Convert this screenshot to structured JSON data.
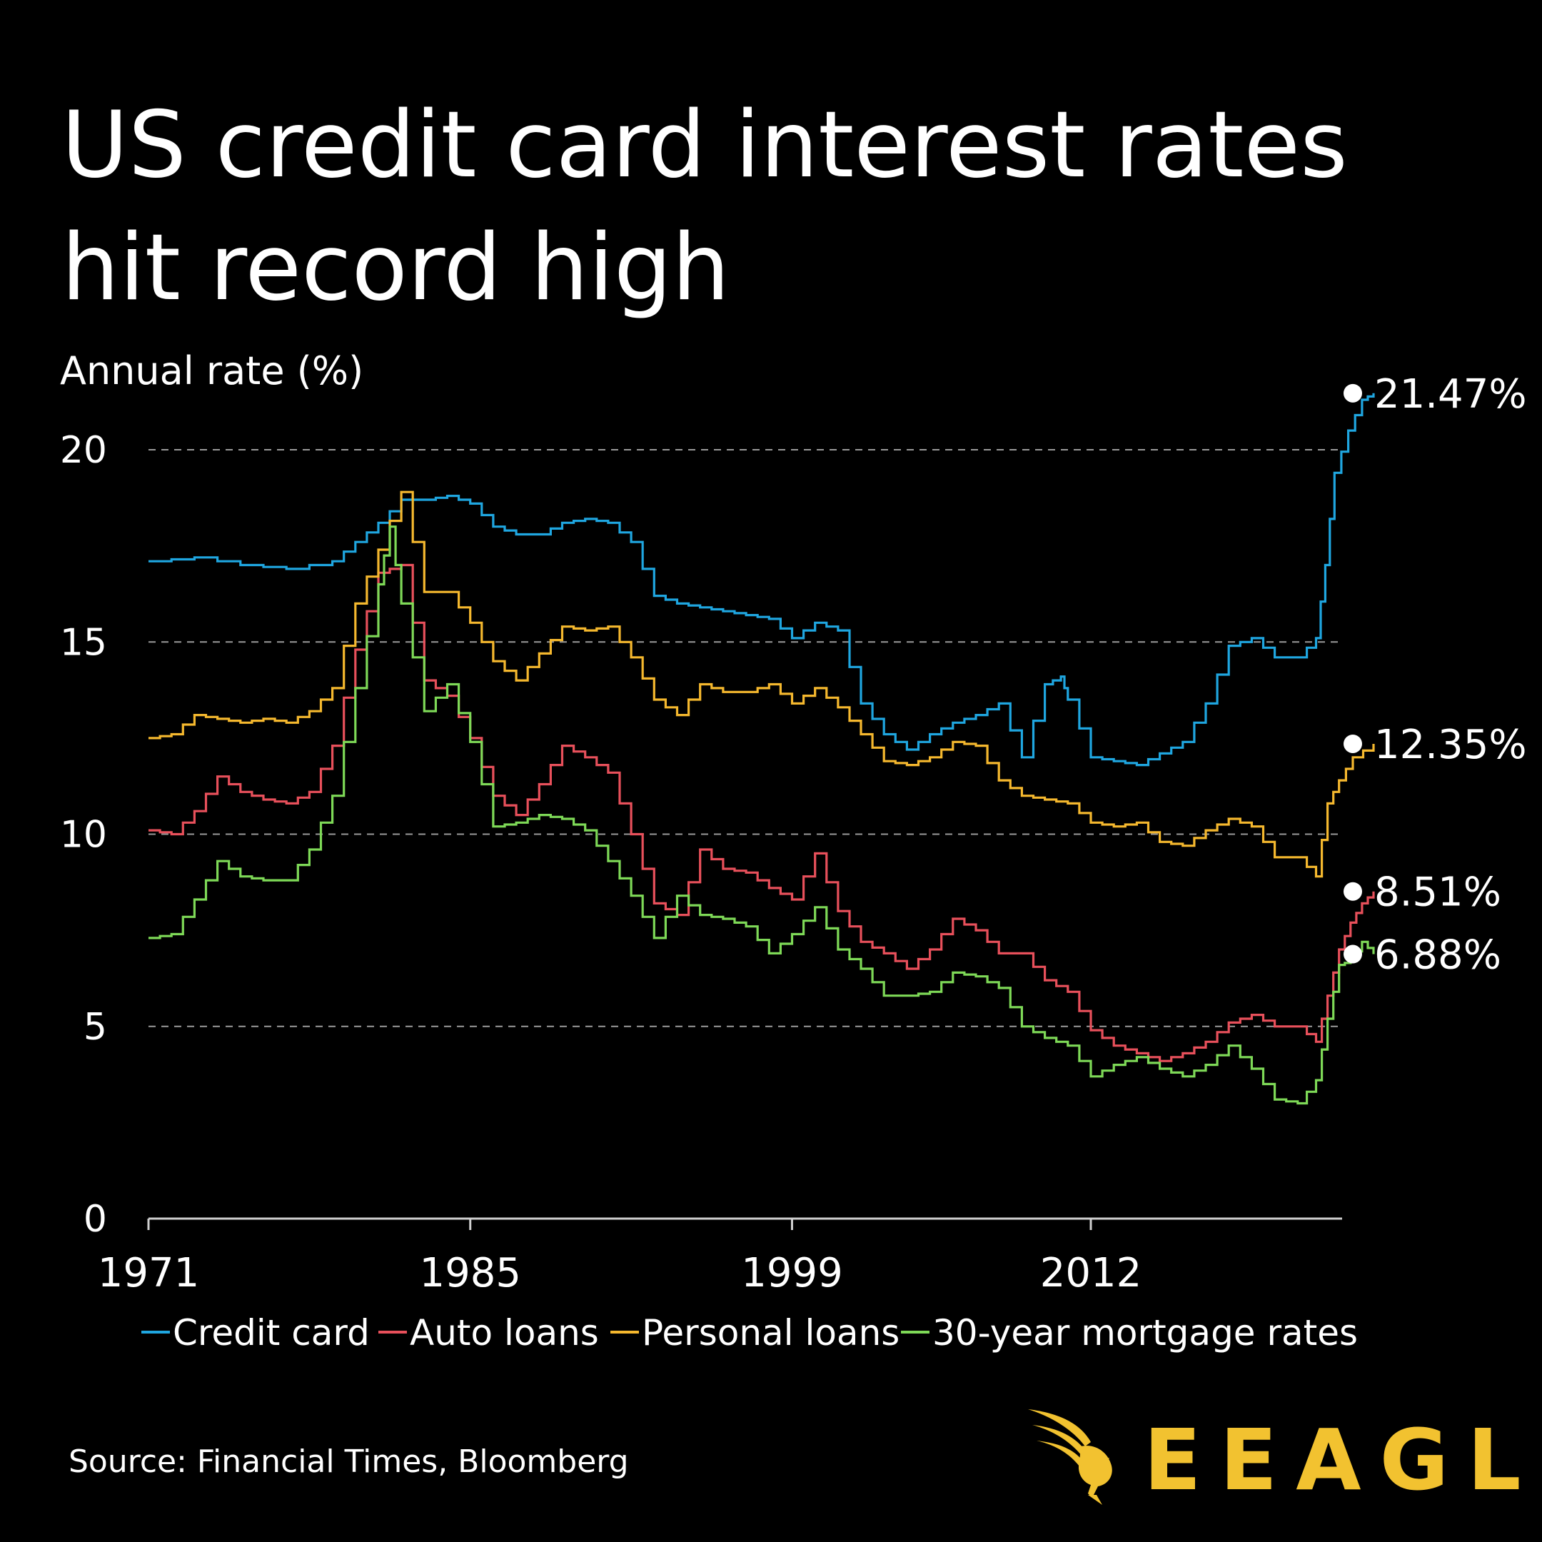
{
  "title_line1": "US credit card interest rates",
  "title_line2": "hit record high",
  "source": "Source: Financial Times, Bloomberg",
  "brand": {
    "name": "EEAGLI",
    "color": "#f2c230"
  },
  "chart_data": {
    "type": "line",
    "title": "US credit card interest rates hit record high",
    "ylabel": "Annual rate (%)",
    "xlabel": "",
    "ylim": [
      0,
      21.5
    ],
    "xlim": [
      1971,
      2024.5
    ],
    "yticks": [
      0,
      5,
      10,
      15,
      20
    ],
    "xticks": [
      1971,
      1985,
      1999,
      2012
    ],
    "grid": "horizontal dashed",
    "legend_position": "bottom",
    "series": [
      {
        "name": "Credit card",
        "color": "#1fa6e0",
        "end_label": "21.47%",
        "points": [
          [
            1971,
            17.1
          ],
          [
            1973,
            17.2
          ],
          [
            1975,
            17.0
          ],
          [
            1977,
            16.9
          ],
          [
            1979,
            17.1
          ],
          [
            1980,
            17.6
          ],
          [
            1981,
            18.1
          ],
          [
            1982,
            18.7
          ],
          [
            1983,
            18.7
          ],
          [
            1984,
            18.8
          ],
          [
            1985,
            18.6
          ],
          [
            1986,
            18.0
          ],
          [
            1987,
            17.8
          ],
          [
            1988,
            17.8
          ],
          [
            1989,
            18.1
          ],
          [
            1990,
            18.2
          ],
          [
            1991,
            18.1
          ],
          [
            1992,
            17.6
          ],
          [
            1993,
            16.2
          ],
          [
            1994,
            16.0
          ],
          [
            1995,
            15.9
          ],
          [
            1996,
            15.8
          ],
          [
            1997,
            15.7
          ],
          [
            1998,
            15.6
          ],
          [
            1999,
            15.1
          ],
          [
            2000,
            15.5
          ],
          [
            2001,
            15.3
          ],
          [
            2002,
            13.4
          ],
          [
            2003,
            12.6
          ],
          [
            2004,
            12.2
          ],
          [
            2005,
            12.6
          ],
          [
            2006,
            12.9
          ],
          [
            2007,
            13.1
          ],
          [
            2008,
            13.4
          ],
          [
            2009,
            12.0
          ],
          [
            2010,
            13.9
          ],
          [
            2010.7,
            14.1
          ],
          [
            2011,
            13.5
          ],
          [
            2012,
            12.0
          ],
          [
            2013,
            11.9
          ],
          [
            2014,
            11.8
          ],
          [
            2015,
            12.1
          ],
          [
            2016,
            12.4
          ],
          [
            2017,
            13.4
          ],
          [
            2018,
            14.9
          ],
          [
            2019,
            15.1
          ],
          [
            2020,
            14.6
          ],
          [
            2021,
            14.6
          ],
          [
            2021.8,
            15.1
          ],
          [
            2022.2,
            17.0
          ],
          [
            2022.6,
            19.4
          ],
          [
            2023.2,
            20.5
          ],
          [
            2023.8,
            21.3
          ],
          [
            2024.3,
            21.47
          ]
        ]
      },
      {
        "name": "Auto loans",
        "color": "#e8505b",
        "end_label": "8.51%",
        "points": [
          [
            1971,
            10.1
          ],
          [
            1972,
            10.0
          ],
          [
            1973,
            10.6
          ],
          [
            1974,
            11.5
          ],
          [
            1975,
            11.1
          ],
          [
            1976,
            10.9
          ],
          [
            1977,
            10.8
          ],
          [
            1978,
            11.1
          ],
          [
            1979,
            12.3
          ],
          [
            1980,
            14.8
          ],
          [
            1981,
            16.8
          ],
          [
            1982,
            17.0
          ],
          [
            1983,
            14.0
          ],
          [
            1984,
            13.6
          ],
          [
            1985,
            12.5
          ],
          [
            1986,
            11.0
          ],
          [
            1987,
            10.5
          ],
          [
            1988,
            11.3
          ],
          [
            1989,
            12.3
          ],
          [
            1990,
            12.0
          ],
          [
            1991,
            11.6
          ],
          [
            1992,
            10.0
          ],
          [
            1993,
            8.2
          ],
          [
            1994,
            7.9
          ],
          [
            1995,
            9.6
          ],
          [
            1996,
            9.1
          ],
          [
            1997,
            9.0
          ],
          [
            1998,
            8.6
          ],
          [
            1999,
            8.3
          ],
          [
            2000,
            9.5
          ],
          [
            2001,
            8.0
          ],
          [
            2002,
            7.2
          ],
          [
            2003,
            6.9
          ],
          [
            2004,
            6.5
          ],
          [
            2005,
            7.0
          ],
          [
            2006,
            7.8
          ],
          [
            2007,
            7.5
          ],
          [
            2008,
            6.9
          ],
          [
            2009,
            6.9
          ],
          [
            2010,
            6.2
          ],
          [
            2011,
            5.9
          ],
          [
            2012,
            4.9
          ],
          [
            2013,
            4.5
          ],
          [
            2014,
            4.3
          ],
          [
            2015,
            4.1
          ],
          [
            2016,
            4.3
          ],
          [
            2017,
            4.6
          ],
          [
            2018,
            5.1
          ],
          [
            2019,
            5.3
          ],
          [
            2020,
            5.0
          ],
          [
            2021,
            5.0
          ],
          [
            2021.8,
            4.6
          ],
          [
            2022.3,
            5.8
          ],
          [
            2022.8,
            7.0
          ],
          [
            2023.3,
            7.7
          ],
          [
            2023.8,
            8.2
          ],
          [
            2024.3,
            8.51
          ]
        ]
      },
      {
        "name": "Personal loans",
        "color": "#f5b82e",
        "end_label": "12.35%",
        "points": [
          [
            1971,
            12.5
          ],
          [
            1972,
            12.6
          ],
          [
            1973,
            13.1
          ],
          [
            1974,
            13.0
          ],
          [
            1975,
            12.9
          ],
          [
            1976,
            13.0
          ],
          [
            1977,
            12.9
          ],
          [
            1978,
            13.2
          ],
          [
            1979,
            13.8
          ],
          [
            1980,
            16.0
          ],
          [
            1981,
            17.4
          ],
          [
            1982,
            18.9
          ],
          [
            1983,
            16.3
          ],
          [
            1984,
            16.3
          ],
          [
            1985,
            15.5
          ],
          [
            1986,
            14.5
          ],
          [
            1987,
            14.0
          ],
          [
            1988,
            14.7
          ],
          [
            1989,
            15.4
          ],
          [
            1990,
            15.3
          ],
          [
            1991,
            15.4
          ],
          [
            1992,
            14.6
          ],
          [
            1993,
            13.5
          ],
          [
            1994,
            13.1
          ],
          [
            1995,
            13.9
          ],
          [
            1996,
            13.7
          ],
          [
            1997,
            13.7
          ],
          [
            1998,
            13.9
          ],
          [
            1999,
            13.4
          ],
          [
            2000,
            13.8
          ],
          [
            2001,
            13.3
          ],
          [
            2002,
            12.6
          ],
          [
            2003,
            11.9
          ],
          [
            2004,
            11.8
          ],
          [
            2005,
            12.0
          ],
          [
            2006,
            12.4
          ],
          [
            2007,
            12.3
          ],
          [
            2008,
            11.4
          ],
          [
            2009,
            11.0
          ],
          [
            2010,
            10.9
          ],
          [
            2011,
            10.8
          ],
          [
            2012,
            10.3
          ],
          [
            2013,
            10.2
          ],
          [
            2014,
            10.3
          ],
          [
            2015,
            9.8
          ],
          [
            2016,
            9.7
          ],
          [
            2017,
            10.1
          ],
          [
            2018,
            10.4
          ],
          [
            2019,
            10.2
          ],
          [
            2020,
            9.4
          ],
          [
            2021,
            9.4
          ],
          [
            2021.8,
            8.9
          ],
          [
            2022.3,
            10.8
          ],
          [
            2022.8,
            11.4
          ],
          [
            2023.4,
            12.0
          ],
          [
            2024.3,
            12.35
          ]
        ]
      },
      {
        "name": "30-year mortgage rates",
        "color": "#7ed957",
        "end_label": "6.88%",
        "points": [
          [
            1971,
            7.3
          ],
          [
            1972,
            7.4
          ],
          [
            1973,
            8.3
          ],
          [
            1974,
            9.3
          ],
          [
            1975,
            8.9
          ],
          [
            1976,
            8.8
          ],
          [
            1977,
            8.8
          ],
          [
            1978,
            9.6
          ],
          [
            1979,
            11.0
          ],
          [
            1980,
            13.8
          ],
          [
            1981,
            16.5
          ],
          [
            1981.5,
            18.0
          ],
          [
            1982,
            16.0
          ],
          [
            1983,
            13.2
          ],
          [
            1984,
            13.9
          ],
          [
            1985,
            12.4
          ],
          [
            1986,
            10.2
          ],
          [
            1987,
            10.3
          ],
          [
            1988,
            10.5
          ],
          [
            1989,
            10.4
          ],
          [
            1990,
            10.1
          ],
          [
            1991,
            9.3
          ],
          [
            1992,
            8.4
          ],
          [
            1993,
            7.3
          ],
          [
            1994,
            8.4
          ],
          [
            1995,
            7.9
          ],
          [
            1996,
            7.8
          ],
          [
            1997,
            7.6
          ],
          [
            1998,
            6.9
          ],
          [
            1999,
            7.4
          ],
          [
            2000,
            8.1
          ],
          [
            2001,
            7.0
          ],
          [
            2002,
            6.5
          ],
          [
            2003,
            5.8
          ],
          [
            2004,
            5.8
          ],
          [
            2005,
            5.9
          ],
          [
            2006,
            6.4
          ],
          [
            2007,
            6.3
          ],
          [
            2008,
            6.0
          ],
          [
            2009,
            5.0
          ],
          [
            2010,
            4.7
          ],
          [
            2011,
            4.5
          ],
          [
            2012,
            3.7
          ],
          [
            2013,
            4.0
          ],
          [
            2014,
            4.2
          ],
          [
            2015,
            3.9
          ],
          [
            2016,
            3.7
          ],
          [
            2017,
            4.0
          ],
          [
            2018,
            4.5
          ],
          [
            2019,
            3.9
          ],
          [
            2020,
            3.1
          ],
          [
            2021,
            3.0
          ],
          [
            2021.8,
            3.6
          ],
          [
            2022.3,
            5.2
          ],
          [
            2022.8,
            6.6
          ],
          [
            2023.3,
            6.7
          ],
          [
            2023.8,
            7.2
          ],
          [
            2024.3,
            6.88
          ]
        ]
      }
    ]
  }
}
